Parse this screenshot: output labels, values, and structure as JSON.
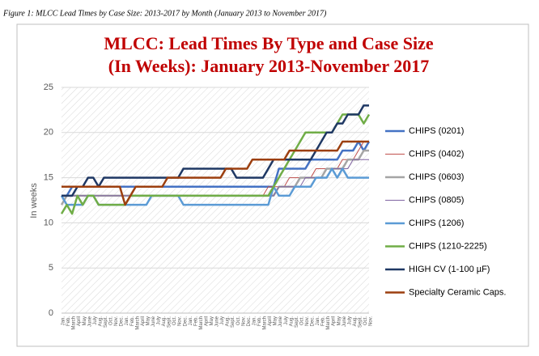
{
  "caption": "Figure 1: MLCC Lead Times by Case Size: 2013-2017 by Month (January 2013 to November 2017)",
  "chart_data": {
    "type": "line",
    "title": [
      "MLCC: Lead Times By Type and Case Size",
      "(In Weeks):  January 2013-November 2017"
    ],
    "y_label": "In weeks",
    "categories": [
      "Jan.",
      "Feb.",
      "March",
      "April",
      "May",
      "June",
      "July",
      "Aug.",
      "Sept.",
      "Oct.",
      "Nov.",
      "Dec.",
      "Jan.",
      "Feb.",
      "March",
      "April",
      "May",
      "June",
      "July",
      "Aug.",
      "Sept.",
      "Oct.",
      "Nov.",
      "Dec.",
      "Jan.",
      "Feb.",
      "March",
      "April",
      "May",
      "June",
      "July",
      "Aug.",
      "Sept.",
      "Oct.",
      "Nov.",
      "Dec.",
      "Jan.",
      "Feb.",
      "March",
      "April",
      "May",
      "June",
      "July",
      "Aug.",
      "Sept.",
      "Oct.",
      "Nov.",
      "Dec.",
      "Jan.",
      "Feb.",
      "March",
      "April",
      "May",
      "June",
      "July",
      "Aug.",
      "Sept.",
      "Oct.",
      "Nov."
    ],
    "ylim": [
      0,
      25
    ],
    "yticks": [
      0,
      5,
      10,
      15,
      20,
      25
    ],
    "grid": true,
    "series": [
      {
        "name": "CHIPS (0201)",
        "color": "#4472c4",
        "width": 2.5,
        "values": [
          13,
          13,
          14,
          14,
          14,
          14,
          14,
          14,
          14,
          14,
          14,
          14,
          14,
          14,
          14,
          14,
          14,
          14,
          14,
          14,
          14,
          14,
          14,
          14,
          14,
          14,
          14,
          14,
          14,
          14,
          14,
          14,
          14,
          14,
          14,
          14,
          14,
          14,
          14,
          14,
          14,
          16,
          16,
          16,
          16,
          16,
          16,
          17,
          17,
          17,
          17,
          17,
          17,
          18,
          18,
          18,
          19,
          18,
          19
        ]
      },
      {
        "name": "CHIPS (0402)",
        "color": "#c0504d",
        "width": 1,
        "values": [
          13,
          13,
          13,
          13,
          13,
          13,
          13,
          13,
          13,
          13,
          13,
          13,
          13,
          13,
          13,
          13,
          13,
          13,
          13,
          13,
          13,
          13,
          13,
          13,
          13,
          13,
          13,
          13,
          13,
          13,
          13,
          13,
          13,
          13,
          13,
          13,
          13,
          13,
          13,
          14,
          14,
          14,
          14,
          15,
          15,
          15,
          15,
          15,
          16,
          16,
          16,
          16,
          16,
          17,
          17,
          17,
          18,
          19,
          19
        ]
      },
      {
        "name": "CHIPS (0603)",
        "color": "#a5a5a5",
        "width": 2.5,
        "values": [
          12,
          13,
          13,
          13,
          13,
          13,
          13,
          13,
          13,
          13,
          13,
          13,
          13,
          13,
          13,
          13,
          13,
          13,
          13,
          13,
          13,
          13,
          13,
          13,
          13,
          13,
          13,
          13,
          13,
          13,
          13,
          13,
          13,
          13,
          13,
          13,
          13,
          13,
          13,
          13,
          13,
          14,
          14,
          14,
          14,
          15,
          15,
          15,
          15,
          15,
          16,
          16,
          16,
          16,
          17,
          17,
          17,
          18,
          18
        ]
      },
      {
        "name": "CHIPS (0805)",
        "color": "#8064a2",
        "width": 1,
        "values": [
          13,
          13,
          13,
          13,
          13,
          13,
          13,
          13,
          13,
          13,
          13,
          13,
          13,
          13,
          13,
          13,
          13,
          13,
          13,
          13,
          13,
          13,
          13,
          13,
          13,
          13,
          13,
          13,
          13,
          13,
          13,
          13,
          13,
          13,
          13,
          13,
          13,
          13,
          13,
          13,
          13,
          14,
          14,
          14,
          14,
          14,
          15,
          15,
          15,
          15,
          15,
          16,
          16,
          16,
          16,
          17,
          17,
          17,
          17
        ]
      },
      {
        "name": "CHIPS (1206)",
        "color": "#5b9bd5",
        "width": 2.5,
        "values": [
          13,
          12,
          12,
          12,
          12,
          13,
          13,
          12,
          12,
          12,
          12,
          12,
          12,
          12,
          12,
          12,
          12,
          13,
          13,
          13,
          13,
          13,
          13,
          12,
          12,
          12,
          12,
          12,
          12,
          12,
          12,
          12,
          12,
          12,
          12,
          12,
          12,
          12,
          12,
          12,
          14,
          13,
          13,
          13,
          14,
          14,
          14,
          14,
          15,
          15,
          15,
          16,
          15,
          16,
          15,
          15,
          15,
          15,
          15
        ]
      },
      {
        "name": "CHIPS (1210-2225)",
        "color": "#70ad47",
        "width": 2.5,
        "values": [
          11,
          12,
          11,
          13,
          12,
          13,
          13,
          12,
          12,
          12,
          12,
          12,
          12,
          13,
          13,
          13,
          13,
          13,
          13,
          13,
          13,
          13,
          13,
          13,
          13,
          13,
          13,
          13,
          13,
          13,
          13,
          13,
          13,
          13,
          13,
          13,
          13,
          13,
          13,
          13,
          14,
          15,
          16,
          17,
          18,
          19,
          20,
          20,
          20,
          20,
          20,
          20,
          21,
          22,
          22,
          22,
          22,
          21,
          22
        ]
      },
      {
        "name": "HIGH CV (1-100 µF)",
        "color": "#1f3864",
        "width": 2.5,
        "values": [
          13,
          13,
          13,
          14,
          14,
          15,
          15,
          14,
          15,
          15,
          15,
          15,
          15,
          15,
          15,
          15,
          15,
          15,
          15,
          15,
          15,
          15,
          15,
          16,
          16,
          16,
          16,
          16,
          16,
          16,
          16,
          16,
          16,
          15,
          15,
          15,
          15,
          15,
          15,
          16,
          17,
          17,
          17,
          17,
          17,
          17,
          17,
          17,
          18,
          19,
          20,
          20,
          21,
          21,
          22,
          22,
          22,
          23,
          23
        ]
      },
      {
        "name": "Specialty Ceramic Caps.",
        "color": "#9c3f0f",
        "width": 2.5,
        "values": [
          14,
          14,
          14,
          14,
          14,
          14,
          14,
          14,
          14,
          14,
          14,
          14,
          12,
          13,
          14,
          14,
          14,
          14,
          14,
          14,
          15,
          15,
          15,
          15,
          15,
          15,
          15,
          15,
          15,
          15,
          15,
          16,
          16,
          16,
          16,
          16,
          17,
          17,
          17,
          17,
          17,
          17,
          17,
          18,
          18,
          18,
          18,
          18,
          18,
          18,
          18,
          18,
          18,
          19,
          19,
          19,
          19,
          19,
          19
        ]
      }
    ]
  }
}
